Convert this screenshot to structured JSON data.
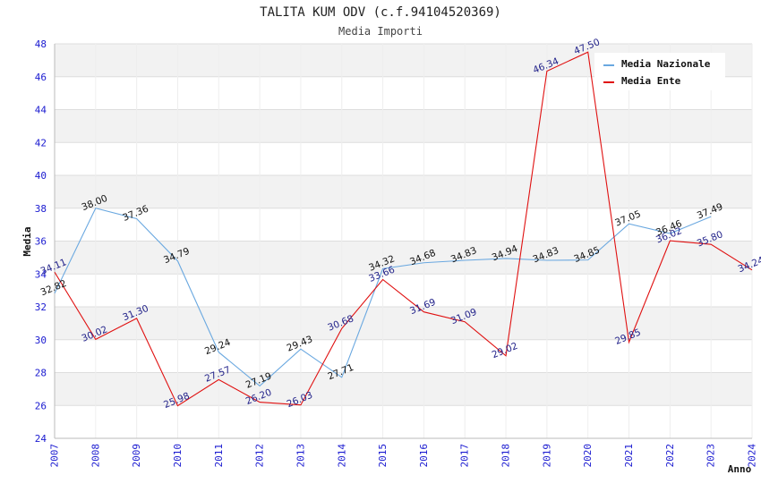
{
  "chart_data": {
    "type": "line",
    "title": "TALITA KUM ODV (c.f.94104520369)",
    "subtitle": "Media Importi",
    "xlabel": "Anno",
    "ylabel": "Media",
    "ylim": [
      24,
      48
    ],
    "yticks": [
      24,
      26,
      28,
      30,
      32,
      34,
      36,
      38,
      40,
      42,
      44,
      46,
      48
    ],
    "x": [
      2007,
      2008,
      2009,
      2010,
      2011,
      2012,
      2013,
      2014,
      2015,
      2016,
      2017,
      2018,
      2019,
      2020,
      2021,
      2022,
      2023,
      2024
    ],
    "legend_position": "top-right",
    "series": [
      {
        "name": "Media Nazionale",
        "color": "#6aa8e0",
        "values": [
          32.82,
          38.0,
          37.36,
          34.79,
          29.24,
          27.19,
          29.43,
          27.71,
          34.32,
          34.68,
          34.83,
          34.94,
          34.83,
          34.85,
          37.05,
          36.46,
          37.49,
          null
        ],
        "labels": [
          "32.82",
          "38.00",
          "37.36",
          "34.79",
          "29.24",
          "27.19",
          "29.43",
          "27.71",
          "34.32",
          "34.68",
          "34.83",
          "34.94",
          "34.83",
          "34.85",
          "37.05",
          "36.46",
          "37.49",
          ""
        ]
      },
      {
        "name": "Media Ente",
        "color": "#e01010",
        "values": [
          34.11,
          30.02,
          31.3,
          25.98,
          27.57,
          26.2,
          26.03,
          30.68,
          33.66,
          31.69,
          31.09,
          29.02,
          46.34,
          47.5,
          29.85,
          36.02,
          35.8,
          34.24
        ],
        "labels": [
          "34.11",
          "30.02",
          "31.30",
          "25.98",
          "27.57",
          "26.20",
          "26.03",
          "30.68",
          "33.66",
          "31.69",
          "31.09",
          "29.02",
          "46.34",
          "47.50",
          "29.85",
          "36.02",
          "35.80",
          "34.24"
        ]
      }
    ]
  }
}
